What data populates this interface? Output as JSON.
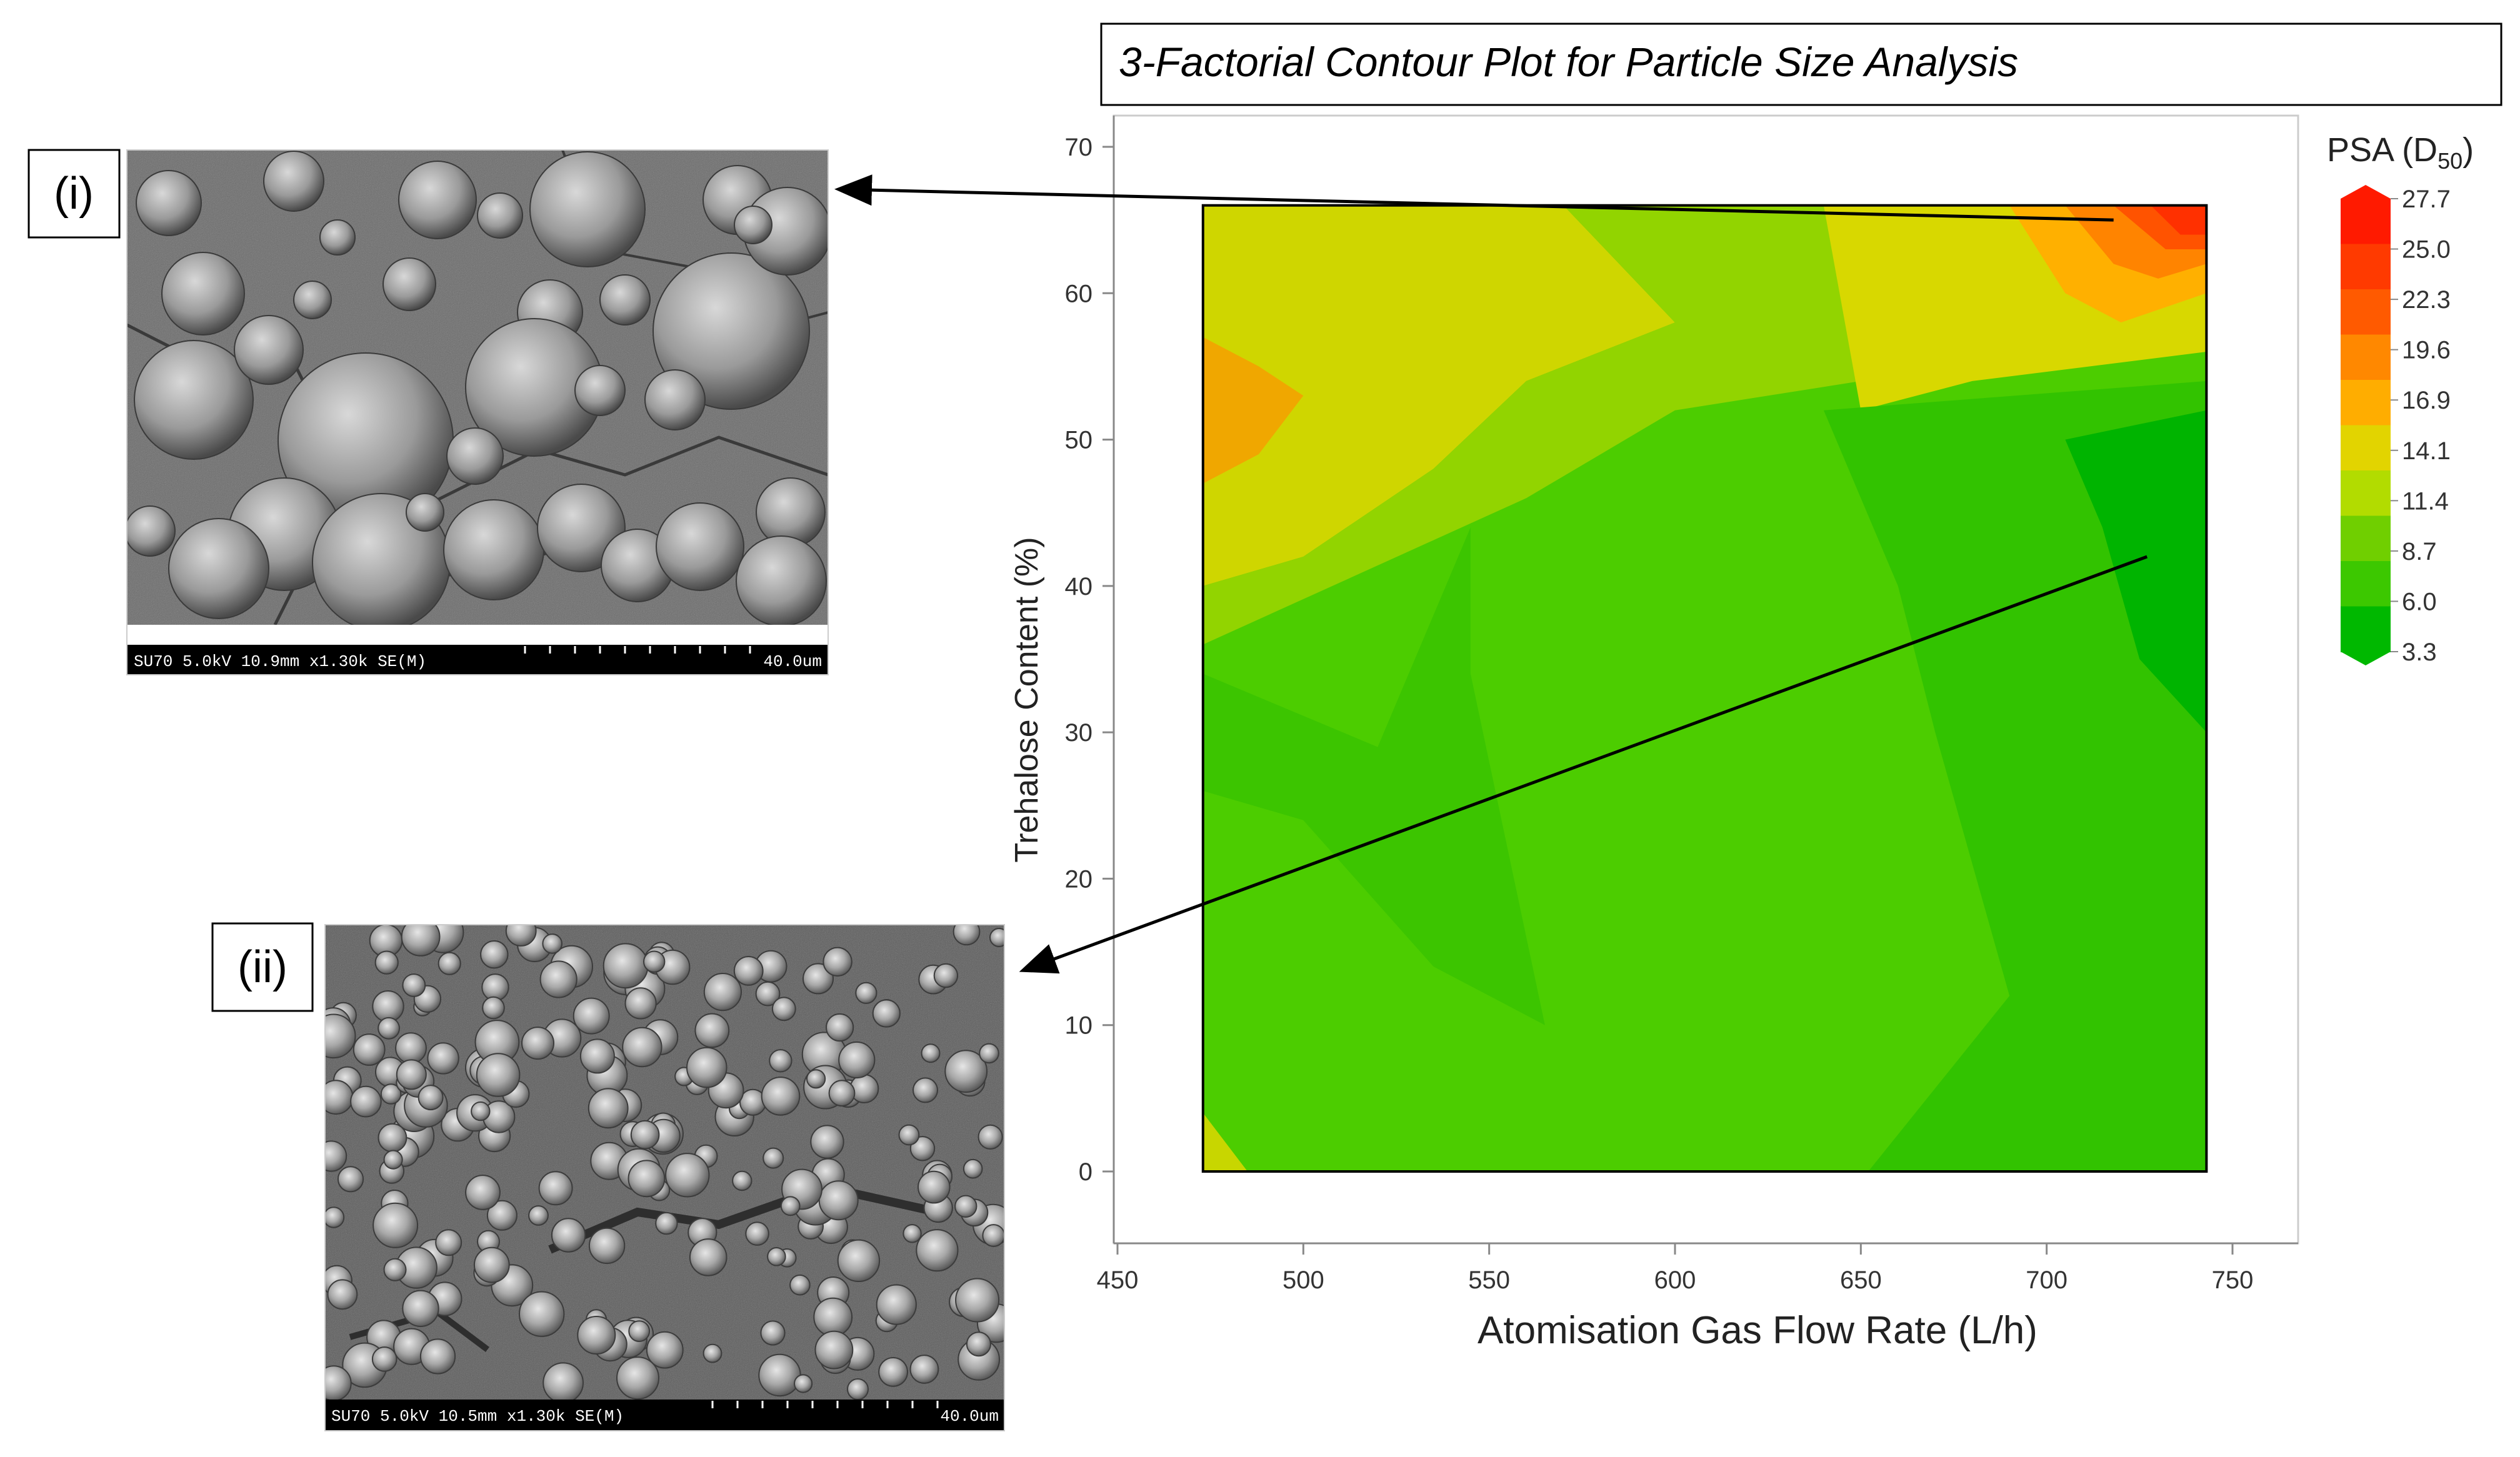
{
  "chart_data": {
    "type": "heatmap",
    "title": "3-Factorial Contour Plot for Particle Size Analysis",
    "xlabel": "Atomisation Gas Flow Rate (L/h)",
    "ylabel": "Trehalose Content (%)",
    "xlim": [
      450,
      750
    ],
    "ylim": [
      -5,
      70
    ],
    "x_ticks": [
      450,
      500,
      550,
      600,
      650,
      700,
      750
    ],
    "y_ticks": [
      0,
      10,
      20,
      30,
      40,
      50,
      60,
      70
    ],
    "data_extent": {
      "x": [
        473,
        743
      ],
      "y": [
        0,
        66
      ]
    },
    "grid": false,
    "legend": {
      "title": "PSA (D",
      "title_sub": "50",
      "title_close": ")",
      "placement": "right",
      "levels": [
        "27.7",
        "25.0",
        "22.3",
        "19.6",
        "16.9",
        "14.1",
        "11.4",
        "8.7",
        "6.0",
        "3.3"
      ],
      "colors": [
        "#ff1a00",
        "#ff3a00",
        "#ff5a00",
        "#ff8800",
        "#ffad00",
        "#e2d400",
        "#b2dc00",
        "#70cf00",
        "#3cc800",
        "#00b800"
      ]
    },
    "regions": [
      {
        "level": "14.1",
        "color": "#cfd600",
        "points": [
          [
            473,
            66
          ],
          [
            570,
            66
          ],
          [
            600,
            58
          ],
          [
            560,
            54
          ],
          [
            535,
            48
          ],
          [
            500,
            42
          ],
          [
            473,
            40
          ]
        ]
      },
      {
        "level": "16.9",
        "color": "#f0a700",
        "points": [
          [
            473,
            57
          ],
          [
            488,
            55
          ],
          [
            500,
            53
          ],
          [
            488,
            49
          ],
          [
            473,
            47
          ]
        ]
      },
      {
        "level": "11.4",
        "color": "#92d400",
        "points": [
          [
            473,
            40
          ],
          [
            500,
            42
          ],
          [
            535,
            48
          ],
          [
            560,
            54
          ],
          [
            600,
            58
          ],
          [
            570,
            66
          ],
          [
            660,
            66
          ],
          [
            650,
            54
          ],
          [
            600,
            52
          ],
          [
            560,
            46
          ],
          [
            473,
            36
          ]
        ]
      },
      {
        "level": "14.1",
        "color": "#d8d800",
        "points": [
          [
            640,
            66
          ],
          [
            705,
            66
          ],
          [
            743,
            62
          ],
          [
            743,
            56
          ],
          [
            680,
            54
          ],
          [
            650,
            52
          ]
        ]
      },
      {
        "level": "16.9",
        "color": "#ffb000",
        "points": [
          [
            690,
            66
          ],
          [
            743,
            66
          ],
          [
            743,
            60
          ],
          [
            720,
            58
          ],
          [
            705,
            60
          ]
        ]
      },
      {
        "level": "19.6",
        "color": "#ff8400",
        "points": [
          [
            705,
            66
          ],
          [
            743,
            66
          ],
          [
            743,
            62
          ],
          [
            730,
            61
          ],
          [
            718,
            62
          ]
        ]
      },
      {
        "level": "22.3",
        "color": "#ff5300",
        "points": [
          [
            718,
            66
          ],
          [
            743,
            66
          ],
          [
            743,
            63
          ],
          [
            732,
            63
          ]
        ]
      },
      {
        "level": "25.0",
        "color": "#ff3000",
        "points": [
          [
            728,
            66
          ],
          [
            743,
            66
          ],
          [
            743,
            64
          ],
          [
            736,
            64
          ]
        ]
      },
      {
        "level": "6.0",
        "color": "#32c300",
        "points": [
          [
            640,
            52
          ],
          [
            743,
            54
          ],
          [
            743,
            0
          ],
          [
            652,
            0
          ],
          [
            690,
            12
          ],
          [
            670,
            30
          ],
          [
            660,
            40
          ]
        ]
      },
      {
        "level": "3.3",
        "color": "#00b400",
        "points": [
          [
            705,
            50
          ],
          [
            743,
            52
          ],
          [
            743,
            30
          ],
          [
            725,
            35
          ],
          [
            715,
            44
          ]
        ]
      },
      {
        "level": "6.0",
        "color": "#3cc500",
        "points": [
          [
            473,
            34
          ],
          [
            520,
            29
          ],
          [
            545,
            44
          ],
          [
            545,
            34
          ],
          [
            565,
            10
          ],
          [
            535,
            14
          ],
          [
            500,
            24
          ],
          [
            473,
            26
          ]
        ]
      },
      {
        "level": "14.1",
        "color": "#c8d600",
        "points": [
          [
            473,
            4
          ],
          [
            485,
            0
          ],
          [
            473,
            0
          ]
        ]
      }
    ],
    "base_color": "#4ccd00",
    "annotations": [
      {
        "label": "(i)",
        "points_to": [
          718,
          65
        ]
      },
      {
        "label": "(ii)",
        "points_to": [
          727,
          42
        ]
      }
    ]
  },
  "micrographs": [
    {
      "label": "(i)",
      "caption_left": "SU70 5.0kV 10.9mm x1.30k SE(M)",
      "caption_right": "40.0um"
    },
    {
      "label": "(ii)",
      "caption_left": "SU70 5.0kV 10.5mm x1.30k SE(M)",
      "caption_right": "40.0um"
    }
  ]
}
